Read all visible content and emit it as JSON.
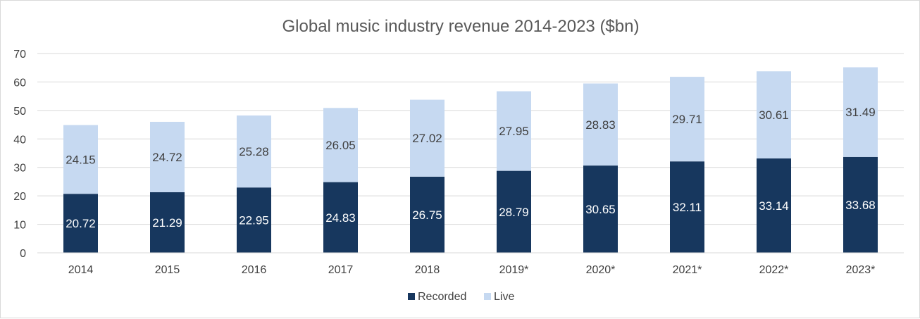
{
  "chart_data": {
    "type": "bar",
    "stacked": true,
    "title": "Global music industry revenue 2014-2023 ($bn)",
    "categories": [
      "2014",
      "2015",
      "2016",
      "2017",
      "2018",
      "2019*",
      "2020*",
      "2021*",
      "2022*",
      "2023*"
    ],
    "series": [
      {
        "name": "Recorded",
        "color": "#17375e",
        "label_color": "#ffffff",
        "values": [
          20.72,
          21.29,
          22.95,
          24.83,
          26.75,
          28.79,
          30.65,
          32.11,
          33.14,
          33.68
        ]
      },
      {
        "name": "Live",
        "color": "#c6d9f1",
        "label_color": "#404040",
        "values": [
          24.15,
          24.72,
          25.28,
          26.05,
          27.02,
          27.95,
          28.83,
          29.71,
          30.61,
          31.49
        ]
      }
    ],
    "ylim": [
      0,
      70
    ],
    "yticks": [
      0,
      10,
      20,
      30,
      40,
      50,
      60,
      70
    ],
    "grid": true,
    "legend": "bottom"
  }
}
